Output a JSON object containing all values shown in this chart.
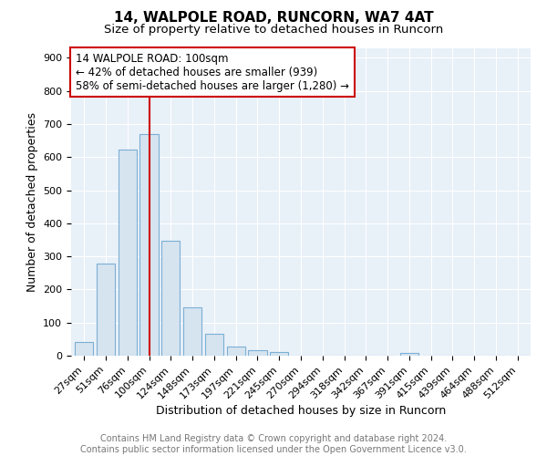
{
  "title": "14, WALPOLE ROAD, RUNCORN, WA7 4AT",
  "subtitle": "Size of property relative to detached houses in Runcorn",
  "xlabel": "Distribution of detached houses by size in Runcorn",
  "ylabel": "Number of detached properties",
  "categories": [
    "27sqm",
    "51sqm",
    "76sqm",
    "100sqm",
    "124sqm",
    "148sqm",
    "173sqm",
    "197sqm",
    "221sqm",
    "245sqm",
    "270sqm",
    "294sqm",
    "318sqm",
    "342sqm",
    "367sqm",
    "391sqm",
    "415sqm",
    "439sqm",
    "464sqm",
    "488sqm",
    "512sqm"
  ],
  "values": [
    42,
    278,
    622,
    670,
    348,
    145,
    65,
    28,
    16,
    11,
    0,
    0,
    0,
    0,
    0,
    9,
    0,
    0,
    0,
    0,
    0
  ],
  "bar_color": "#d6e4f0",
  "bar_edge_color": "#7bafd4",
  "background_color": "#e8f0f8",
  "grid_color": "#ffffff",
  "vline_x_index": 3,
  "vline_color": "#cc0000",
  "annotation_line1": "14 WALPOLE ROAD: 100sqm",
  "annotation_line2": "← 42% of detached houses are smaller (939)",
  "annotation_line3": "58% of semi-detached houses are larger (1,280) →",
  "annotation_box_color": "#cc0000",
  "ylim": [
    0,
    930
  ],
  "yticks": [
    0,
    100,
    200,
    300,
    400,
    500,
    600,
    700,
    800,
    900
  ],
  "footer_line1": "Contains HM Land Registry data © Crown copyright and database right 2024.",
  "footer_line2": "Contains public sector information licensed under the Open Government Licence v3.0.",
  "title_fontsize": 11,
  "subtitle_fontsize": 9.5,
  "axis_label_fontsize": 9,
  "tick_fontsize": 8,
  "annotation_fontsize": 8.5,
  "footer_fontsize": 7
}
